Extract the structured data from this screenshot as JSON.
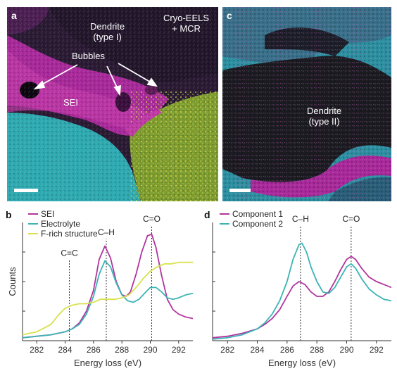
{
  "panel_a": {
    "letter": "a",
    "title": "Dendrite\n(type I)",
    "method": "Cryo-EELS\n+ MCR",
    "bubbles": "Bubbles",
    "sei": "SEI"
  },
  "panel_c": {
    "letter": "c",
    "title": "Dendrite\n(type II)"
  },
  "chart_data": [
    {
      "type": "line",
      "panel": "b",
      "xlabel": "Energy loss (eV)",
      "ylabel": "Counts",
      "xlim": [
        281,
        293
      ],
      "ticks": [
        282,
        284,
        286,
        288,
        290,
        292
      ],
      "markers": [
        {
          "x": 284.3,
          "label": "C=C"
        },
        {
          "x": 286.9,
          "label": "C–H"
        },
        {
          "x": 290.1,
          "label": "C=O"
        }
      ],
      "series": [
        {
          "name": "SEI",
          "color": "#b2359e",
          "x": [
            281,
            282,
            283,
            284,
            284.5,
            285,
            285.5,
            286,
            286.4,
            286.8,
            287.2,
            287.6,
            288,
            288.3,
            288.6,
            289,
            289.4,
            289.8,
            290.1,
            290.4,
            290.8,
            291.2,
            291.6,
            292,
            292.5,
            293
          ],
          "y": [
            0.02,
            0.03,
            0.04,
            0.06,
            0.08,
            0.12,
            0.2,
            0.34,
            0.55,
            0.64,
            0.56,
            0.4,
            0.31,
            0.3,
            0.33,
            0.45,
            0.6,
            0.71,
            0.72,
            0.63,
            0.44,
            0.28,
            0.21,
            0.18,
            0.16,
            0.15
          ]
        },
        {
          "name": "Electrolyte",
          "color": "#3db3b5",
          "x": [
            281,
            282,
            283,
            284,
            284.5,
            285,
            285.5,
            286,
            286.4,
            286.8,
            287.2,
            287.6,
            288,
            288.4,
            288.8,
            289.2,
            289.6,
            290,
            290.4,
            290.8,
            291.2,
            291.6,
            292,
            292.5,
            293
          ],
          "y": [
            0.02,
            0.03,
            0.04,
            0.06,
            0.08,
            0.11,
            0.18,
            0.3,
            0.45,
            0.54,
            0.5,
            0.39,
            0.31,
            0.27,
            0.26,
            0.28,
            0.32,
            0.36,
            0.36,
            0.33,
            0.29,
            0.28,
            0.29,
            0.31,
            0.32
          ]
        },
        {
          "name": "F-rich structure",
          "color": "#d9e14c",
          "x": [
            281,
            282,
            283,
            283.5,
            284,
            284.5,
            285,
            285.5,
            286,
            286.5,
            287,
            287.5,
            288,
            288.5,
            289,
            289.5,
            290,
            290.5,
            291,
            291.5,
            292,
            292.5,
            293
          ],
          "y": [
            0.04,
            0.06,
            0.11,
            0.17,
            0.22,
            0.24,
            0.25,
            0.25,
            0.26,
            0.28,
            0.28,
            0.28,
            0.29,
            0.31,
            0.36,
            0.42,
            0.47,
            0.5,
            0.52,
            0.52,
            0.53,
            0.53,
            0.53
          ]
        }
      ]
    },
    {
      "type": "line",
      "panel": "d",
      "xlabel": "Energy loss (eV)",
      "ylabel": "",
      "xlim": [
        281,
        293
      ],
      "ticks": [
        282,
        284,
        286,
        288,
        290,
        292
      ],
      "markers": [
        {
          "x": 286.9,
          "label": "C–H"
        },
        {
          "x": 290.3,
          "label": "C=O"
        }
      ],
      "series": [
        {
          "name": "Component 1",
          "color": "#b2359e",
          "x": [
            281,
            282,
            283,
            284,
            284.5,
            285,
            285.5,
            286,
            286.4,
            286.8,
            287.2,
            287.6,
            288,
            288.4,
            288.8,
            289.2,
            289.6,
            290,
            290.3,
            290.6,
            291,
            291.5,
            292,
            292.5,
            293
          ],
          "y": [
            0.02,
            0.03,
            0.05,
            0.08,
            0.11,
            0.15,
            0.21,
            0.3,
            0.37,
            0.4,
            0.38,
            0.33,
            0.3,
            0.3,
            0.33,
            0.4,
            0.48,
            0.55,
            0.57,
            0.55,
            0.49,
            0.43,
            0.4,
            0.38,
            0.36
          ]
        },
        {
          "name": "Component 2",
          "color": "#3db3b5",
          "x": [
            281,
            282,
            283,
            284,
            284.5,
            285,
            285.5,
            286,
            286.4,
            286.8,
            287,
            287.3,
            287.6,
            288,
            288.4,
            288.8,
            289.2,
            289.6,
            290,
            290.3,
            290.6,
            291,
            291.5,
            292,
            292.5,
            293
          ],
          "y": [
            0.01,
            0.02,
            0.04,
            0.08,
            0.12,
            0.18,
            0.27,
            0.4,
            0.55,
            0.65,
            0.66,
            0.6,
            0.5,
            0.4,
            0.33,
            0.32,
            0.36,
            0.43,
            0.5,
            0.52,
            0.49,
            0.42,
            0.35,
            0.31,
            0.28,
            0.27
          ]
        }
      ]
    }
  ],
  "panel_b": {
    "letter": "b"
  },
  "panel_d": {
    "letter": "d"
  }
}
